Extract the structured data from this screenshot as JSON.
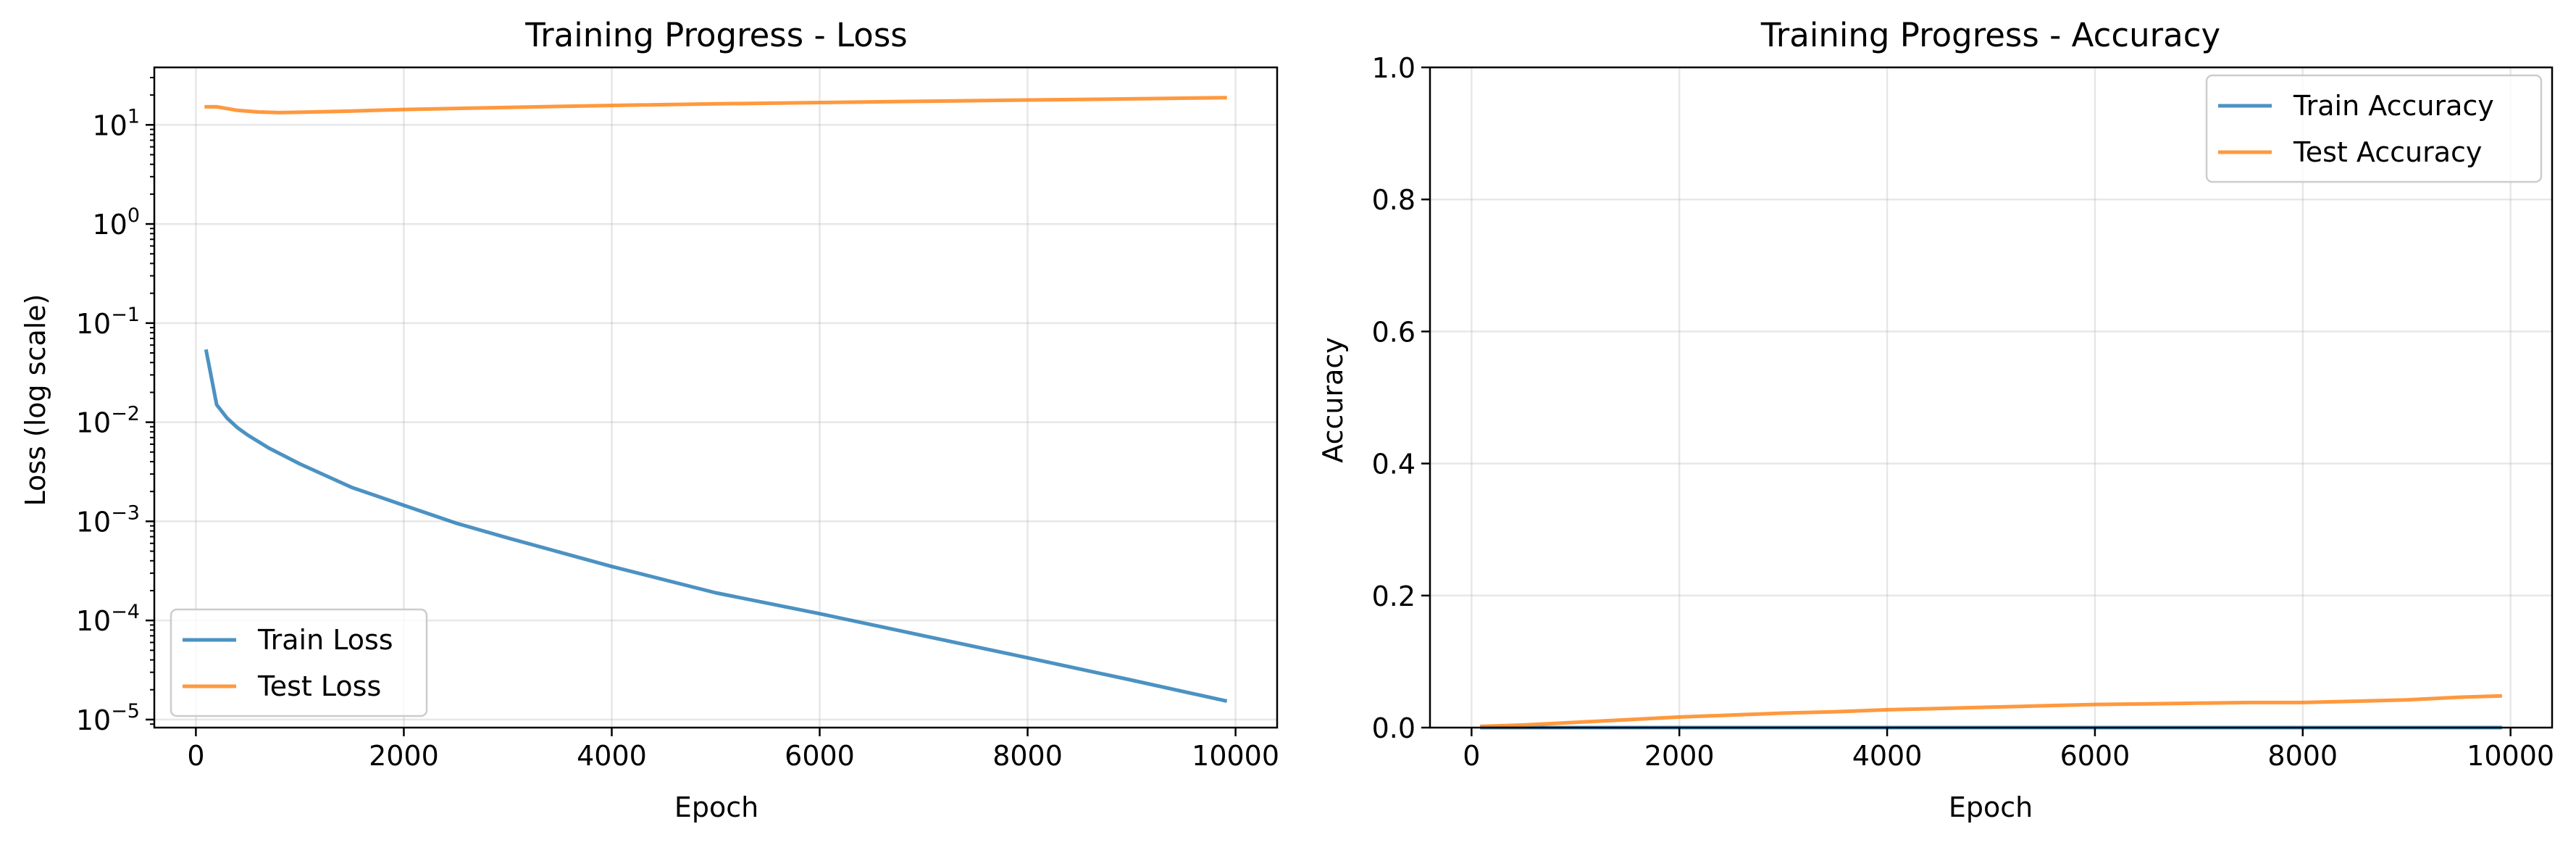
{
  "chart_data": [
    {
      "type": "line",
      "title": "Training Progress - Loss",
      "xlabel": "Epoch",
      "ylabel": "Loss (log scale)",
      "xlim": [
        -400,
        10400
      ],
      "ylim": [
        8.3e-06,
        38
      ],
      "yscale": "log",
      "grid": true,
      "legend_position": "lower-left",
      "x_ticks": [
        {
          "value": 0,
          "label": "0"
        },
        {
          "value": 2000,
          "label": "2000"
        },
        {
          "value": 4000,
          "label": "4000"
        },
        {
          "value": 6000,
          "label": "6000"
        },
        {
          "value": 8000,
          "label": "8000"
        },
        {
          "value": 10000,
          "label": "10000"
        }
      ],
      "y_ticks": [
        {
          "value": 1e-05,
          "base": "10",
          "exp": "−5"
        },
        {
          "value": 0.0001,
          "base": "10",
          "exp": "−4"
        },
        {
          "value": 0.001,
          "base": "10",
          "exp": "−3"
        },
        {
          "value": 0.01,
          "base": "10",
          "exp": "−2"
        },
        {
          "value": 0.1,
          "base": "10",
          "exp": "−1"
        },
        {
          "value": 1,
          "base": "10",
          "exp": "0"
        },
        {
          "value": 10,
          "base": "10",
          "exp": "1"
        }
      ],
      "series": [
        {
          "name": "Train Loss",
          "color": "#1f77b4",
          "x": [
            100,
            200,
            300,
            400,
            500,
            700,
            1000,
            1500,
            2000,
            2500,
            3000,
            4000,
            5000,
            6000,
            7000,
            8000,
            9000,
            9900
          ],
          "y": [
            0.052,
            0.015,
            0.011,
            0.0088,
            0.0074,
            0.0055,
            0.0038,
            0.0022,
            0.00145,
            0.00096,
            0.00068,
            0.00035,
            0.00019,
            0.000117,
            7e-05,
            4.2e-05,
            2.5e-05,
            1.55e-05
          ]
        },
        {
          "name": "Test Loss",
          "color": "#ff7f0e",
          "x": [
            100,
            200,
            300,
            400,
            600,
            800,
            1000,
            1500,
            2000,
            3000,
            4000,
            5000,
            6000,
            7000,
            8000,
            9000,
            9900
          ],
          "y": [
            15.2,
            15.2,
            14.6,
            14.0,
            13.5,
            13.3,
            13.4,
            13.8,
            14.3,
            15.0,
            15.7,
            16.3,
            16.8,
            17.3,
            17.8,
            18.3,
            18.8
          ]
        }
      ]
    },
    {
      "type": "line",
      "title": "Training Progress - Accuracy",
      "xlabel": "Epoch",
      "ylabel": "Accuracy",
      "xlim": [
        -400,
        10400
      ],
      "ylim": [
        0,
        1.0
      ],
      "grid": true,
      "legend_position": "upper-right",
      "x_ticks": [
        {
          "value": 0,
          "label": "0"
        },
        {
          "value": 2000,
          "label": "2000"
        },
        {
          "value": 4000,
          "label": "4000"
        },
        {
          "value": 6000,
          "label": "6000"
        },
        {
          "value": 8000,
          "label": "8000"
        },
        {
          "value": 10000,
          "label": "10000"
        }
      ],
      "y_ticks": [
        {
          "value": 0,
          "label": "0.0"
        },
        {
          "value": 0.2,
          "label": "0.2"
        },
        {
          "value": 0.4,
          "label": "0.4"
        },
        {
          "value": 0.6,
          "label": "0.6"
        },
        {
          "value": 0.8,
          "label": "0.8"
        },
        {
          "value": 1.0,
          "label": "1.0"
        }
      ],
      "series": [
        {
          "name": "Train Accuracy",
          "color": "#1f77b4",
          "x": [
            100,
            1000,
            2000,
            3000,
            4000,
            5000,
            6000,
            7000,
            8000,
            9000,
            9900
          ],
          "y": [
            0,
            0,
            0,
            0,
            0,
            0,
            0,
            0,
            0,
            0,
            0
          ]
        },
        {
          "name": "Test Accuracy",
          "color": "#ff7f0e",
          "x": [
            100,
            500,
            1000,
            1500,
            2000,
            2500,
            3000,
            3500,
            4000,
            4500,
            5000,
            5500,
            6000,
            6500,
            7000,
            7500,
            8000,
            8500,
            9000,
            9500,
            9900
          ],
          "y": [
            0.002,
            0.004,
            0.008,
            0.012,
            0.016,
            0.019,
            0.022,
            0.024,
            0.027,
            0.029,
            0.031,
            0.033,
            0.035,
            0.036,
            0.037,
            0.038,
            0.038,
            0.04,
            0.042,
            0.046,
            0.048
          ]
        }
      ]
    }
  ]
}
